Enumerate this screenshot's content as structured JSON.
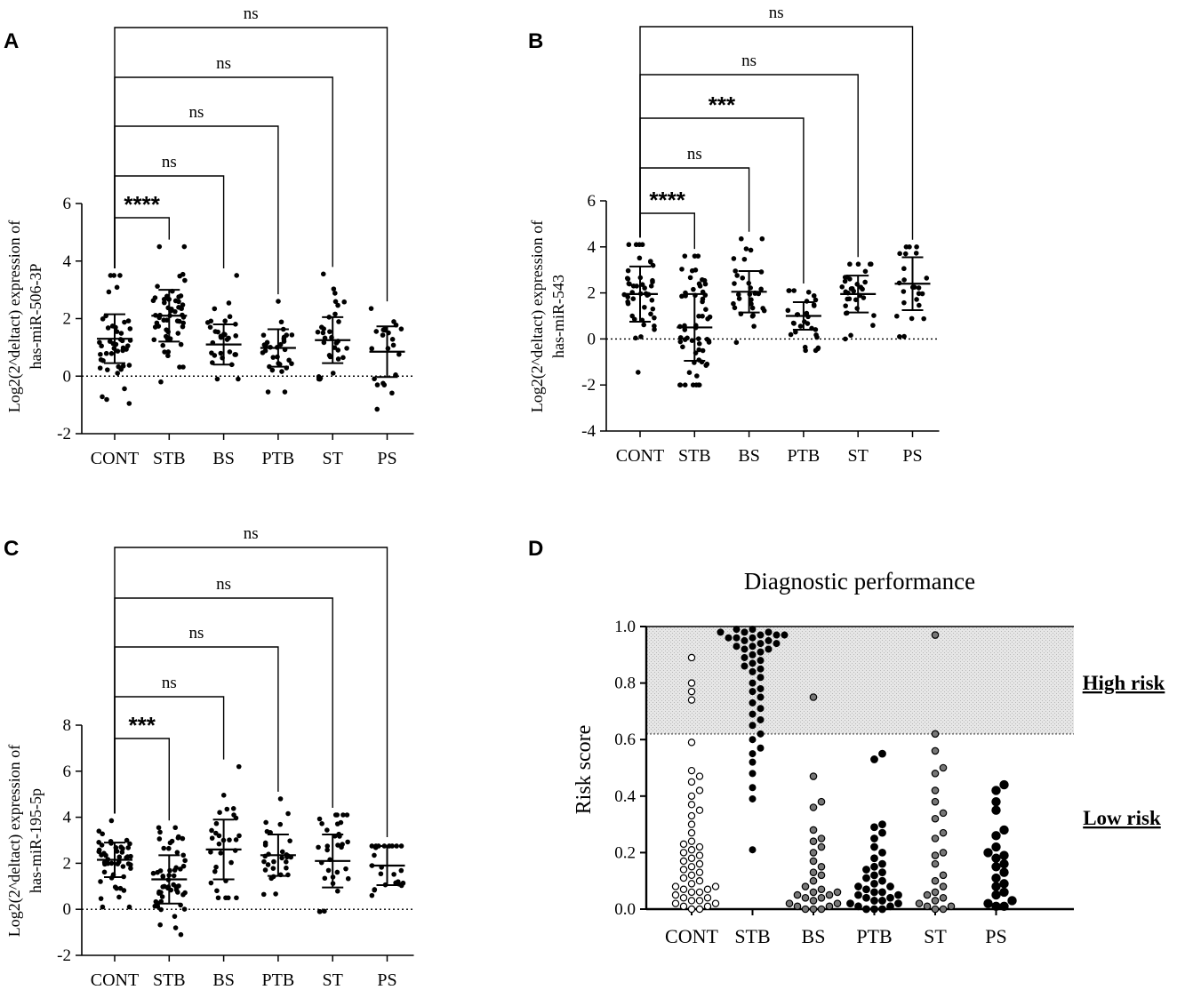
{
  "chart_data": [
    {
      "panel": "A",
      "type": "scatter",
      "ylabel_line1": "Log2(2^deltact) expression of",
      "ylabel_line2": "has-miR-506-3P",
      "ylim": [
        -2,
        6
      ],
      "yticks": [
        "-2",
        "0",
        "2",
        "4",
        "6"
      ],
      "categories": [
        "CONT",
        "STB",
        "BS",
        "PTB",
        "ST",
        "PS"
      ],
      "groups": [
        {
          "name": "CONT",
          "mean": 1.3,
          "sd": 0.85,
          "min": -0.95,
          "max": 3.5,
          "n": 45
        },
        {
          "name": "STB",
          "mean": 2.1,
          "sd": 0.9,
          "min": -0.2,
          "max": 4.5,
          "n": 55
        },
        {
          "name": "BS",
          "mean": 1.1,
          "sd": 0.7,
          "min": -0.1,
          "max": 3.5,
          "n": 30
        },
        {
          "name": "PTB",
          "mean": 0.98,
          "sd": 0.65,
          "min": -0.55,
          "max": 2.6,
          "n": 30
        },
        {
          "name": "ST",
          "mean": 1.25,
          "sd": 0.8,
          "min": -0.1,
          "max": 3.55,
          "n": 32
        },
        {
          "name": "PS",
          "mean": 0.85,
          "sd": 0.88,
          "min": -1.15,
          "max": 2.35,
          "n": 22
        }
      ],
      "comparisons": [
        {
          "vs": "STB",
          "label": "****"
        },
        {
          "vs": "BS",
          "label": "ns"
        },
        {
          "vs": "PTB",
          "label": "ns"
        },
        {
          "vs": "ST",
          "label": "ns"
        },
        {
          "vs": "PS",
          "label": "ns"
        }
      ]
    },
    {
      "panel": "B",
      "type": "scatter",
      "ylabel_line1": "Log2(2^deltact) expression of",
      "ylabel_line2": "has-miR-543",
      "ylim": [
        -4,
        6
      ],
      "yticks": [
        "-4",
        "-2",
        "0",
        "2",
        "4",
        "6"
      ],
      "categories": [
        "CONT",
        "STB",
        "BS",
        "PTB",
        "ST",
        "PS"
      ],
      "groups": [
        {
          "name": "CONT",
          "mean": 1.95,
          "sd": 1.2,
          "min": -1.45,
          "max": 4.1,
          "n": 45
        },
        {
          "name": "STB",
          "mean": 0.5,
          "sd": 1.45,
          "min": -2.0,
          "max": 3.6,
          "n": 60
        },
        {
          "name": "BS",
          "mean": 2.05,
          "sd": 0.9,
          "min": -0.15,
          "max": 4.35,
          "n": 32
        },
        {
          "name": "PTB",
          "mean": 1.0,
          "sd": 0.6,
          "min": -0.5,
          "max": 2.1,
          "n": 30
        },
        {
          "name": "ST",
          "mean": 1.95,
          "sd": 0.8,
          "min": 0.0,
          "max": 3.25,
          "n": 32
        },
        {
          "name": "PS",
          "mean": 2.4,
          "sd": 1.15,
          "min": 0.1,
          "max": 4.0,
          "n": 24
        }
      ],
      "comparisons": [
        {
          "vs": "STB",
          "label": "****"
        },
        {
          "vs": "BS",
          "label": "ns"
        },
        {
          "vs": "PTB",
          "label": "***"
        },
        {
          "vs": "ST",
          "label": "ns"
        },
        {
          "vs": "PS",
          "label": "ns"
        }
      ]
    },
    {
      "panel": "C",
      "type": "scatter",
      "ylabel_line1": "Log2(2^deltact) expression of",
      "ylabel_line2": "has-miR-195-5p",
      "ylim": [
        -2,
        8
      ],
      "yticks": [
        "-2",
        "0",
        "2",
        "4",
        "6",
        "8"
      ],
      "categories": [
        "CONT",
        "STB",
        "BS",
        "PTB",
        "ST",
        "PS"
      ],
      "groups": [
        {
          "name": "CONT",
          "mean": 2.15,
          "sd": 0.75,
          "min": 0.1,
          "max": 3.85,
          "n": 48
        },
        {
          "name": "STB",
          "mean": 1.3,
          "sd": 1.05,
          "min": -1.1,
          "max": 3.55,
          "n": 55
        },
        {
          "name": "BS",
          "mean": 2.6,
          "sd": 1.3,
          "min": 0.5,
          "max": 6.2,
          "n": 30
        },
        {
          "name": "PTB",
          "mean": 2.35,
          "sd": 0.9,
          "min": 0.65,
          "max": 4.8,
          "n": 30
        },
        {
          "name": "ST",
          "mean": 2.1,
          "sd": 1.15,
          "min": -0.1,
          "max": 4.1,
          "n": 32
        },
        {
          "name": "PS",
          "mean": 1.9,
          "sd": 0.85,
          "min": 0.6,
          "max": 2.75,
          "n": 24
        }
      ],
      "comparisons": [
        {
          "vs": "STB",
          "label": "***"
        },
        {
          "vs": "BS",
          "label": "ns"
        },
        {
          "vs": "PTB",
          "label": "ns"
        },
        {
          "vs": "ST",
          "label": "ns"
        },
        {
          "vs": "PS",
          "label": "ns"
        }
      ]
    },
    {
      "panel": "D",
      "type": "scatter",
      "title": "Diagnostic performance",
      "ylabel": "Risk score",
      "ylim": [
        0,
        1
      ],
      "yticks": [
        "0.0",
        "0.2",
        "0.4",
        "0.6",
        "0.8",
        "1.0"
      ],
      "threshold": 0.62,
      "high_label": "High risk",
      "low_label": "Low risk",
      "categories": [
        "CONT",
        "STB",
        "BS",
        "PTB",
        "ST",
        "PS"
      ],
      "groups": [
        {
          "name": "CONT",
          "fill": "open",
          "values": [
            0.89,
            0.8,
            0.77,
            0.74,
            0.59,
            0.49,
            0.47,
            0.45,
            0.42,
            0.4,
            0.37,
            0.35,
            0.33,
            0.3,
            0.27,
            0.24,
            0.23,
            0.22,
            0.21,
            0.2,
            0.19,
            0.18,
            0.17,
            0.16,
            0.15,
            0.14,
            0.13,
            0.12,
            0.11,
            0.1,
            0.09,
            0.08,
            0.08,
            0.07,
            0.07,
            0.06,
            0.06,
            0.05,
            0.04,
            0.04,
            0.03,
            0.03,
            0.02,
            0.02,
            0.01,
            0.01,
            0.0,
            0.0
          ]
        },
        {
          "name": "STB",
          "fill": "solid",
          "values": [
            0.99,
            0.99,
            0.98,
            0.98,
            0.98,
            0.97,
            0.97,
            0.97,
            0.96,
            0.96,
            0.96,
            0.95,
            0.95,
            0.94,
            0.94,
            0.93,
            0.93,
            0.92,
            0.92,
            0.91,
            0.9,
            0.89,
            0.88,
            0.87,
            0.86,
            0.85,
            0.84,
            0.82,
            0.8,
            0.78,
            0.77,
            0.75,
            0.73,
            0.71,
            0.69,
            0.67,
            0.65,
            0.62,
            0.6,
            0.57,
            0.55,
            0.52,
            0.48,
            0.43,
            0.39,
            0.21
          ]
        },
        {
          "name": "BS",
          "fill": "half",
          "values": [
            0.75,
            0.47,
            0.38,
            0.36,
            0.28,
            0.25,
            0.24,
            0.22,
            0.2,
            0.17,
            0.15,
            0.13,
            0.12,
            0.1,
            0.08,
            0.07,
            0.06,
            0.06,
            0.05,
            0.05,
            0.04,
            0.04,
            0.03,
            0.02,
            0.02,
            0.01,
            0.01,
            0.0,
            0.0,
            0.0
          ]
        },
        {
          "name": "PTB",
          "fill": "solid",
          "values": [
            0.55,
            0.53,
            0.3,
            0.29,
            0.27,
            0.25,
            0.22,
            0.2,
            0.18,
            0.16,
            0.15,
            0.14,
            0.13,
            0.12,
            0.11,
            0.1,
            0.09,
            0.08,
            0.08,
            0.07,
            0.06,
            0.06,
            0.05,
            0.05,
            0.04,
            0.04,
            0.03,
            0.03,
            0.02,
            0.02,
            0.01,
            0.01,
            0.0,
            0.0,
            0.0
          ]
        },
        {
          "name": "ST",
          "fill": "half",
          "values": [
            0.97,
            0.62,
            0.56,
            0.5,
            0.48,
            0.42,
            0.38,
            0.34,
            0.32,
            0.27,
            0.25,
            0.2,
            0.19,
            0.16,
            0.12,
            0.1,
            0.08,
            0.06,
            0.05,
            0.04,
            0.03,
            0.02,
            0.01,
            0.01,
            0.0,
            0.0
          ]
        },
        {
          "name": "PS",
          "fill": "solid",
          "values": [
            0.44,
            0.42,
            0.38,
            0.35,
            0.28,
            0.26,
            0.22,
            0.2,
            0.19,
            0.18,
            0.16,
            0.15,
            0.13,
            0.11,
            0.09,
            0.08,
            0.06,
            0.05,
            0.03,
            0.02,
            0.01,
            0.01
          ]
        }
      ]
    }
  ]
}
